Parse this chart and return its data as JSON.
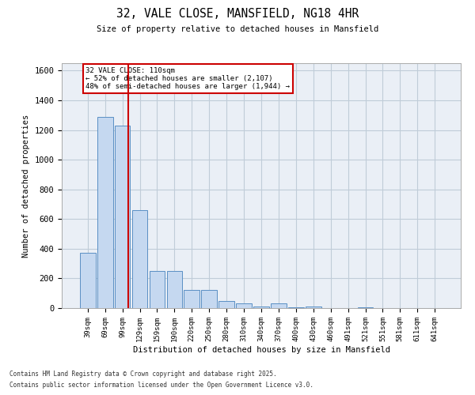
{
  "title": "32, VALE CLOSE, MANSFIELD, NG18 4HR",
  "subtitle": "Size of property relative to detached houses in Mansfield",
  "xlabel": "Distribution of detached houses by size in Mansfield",
  "ylabel": "Number of detached properties",
  "categories": [
    "39sqm",
    "69sqm",
    "99sqm",
    "129sqm",
    "159sqm",
    "190sqm",
    "220sqm",
    "250sqm",
    "280sqm",
    "310sqm",
    "340sqm",
    "370sqm",
    "400sqm",
    "430sqm",
    "460sqm",
    "491sqm",
    "521sqm",
    "551sqm",
    "581sqm",
    "611sqm",
    "641sqm"
  ],
  "values": [
    370,
    1290,
    1230,
    660,
    250,
    250,
    120,
    120,
    50,
    30,
    10,
    30,
    5,
    10,
    0,
    0,
    5,
    0,
    0,
    0,
    0
  ],
  "bar_color": "#c5d8f0",
  "bar_edge_color": "#5a8fc4",
  "grid_color": "#c0ccd8",
  "background_color": "#eaeff6",
  "vline_x": 2.35,
  "vline_color": "#cc0000",
  "annotation_text": "32 VALE CLOSE: 110sqm\n← 52% of detached houses are smaller (2,107)\n48% of semi-detached houses are larger (1,944) →",
  "annotation_box_color": "#cc0000",
  "ylim": [
    0,
    1650
  ],
  "yticks": [
    0,
    200,
    400,
    600,
    800,
    1000,
    1200,
    1400,
    1600
  ],
  "footer_line1": "Contains HM Land Registry data © Crown copyright and database right 2025.",
  "footer_line2": "Contains public sector information licensed under the Open Government Licence v3.0."
}
